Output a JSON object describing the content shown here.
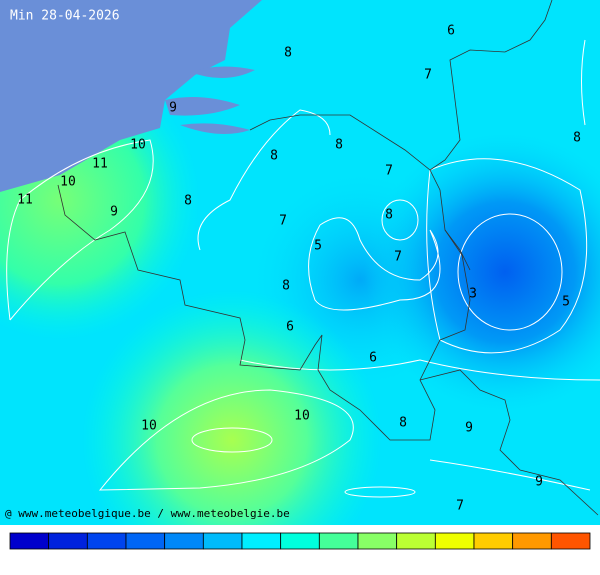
{
  "header": {
    "title": "Min 28-04-2026"
  },
  "labels": [
    8,
    6,
    7,
    8,
    9,
    10,
    11,
    10,
    11,
    9,
    8,
    8,
    8,
    7,
    8,
    7,
    5,
    7,
    8,
    3,
    5,
    6,
    6,
    10,
    10,
    8,
    9,
    9,
    7
  ],
  "footer": {
    "credit": "@ www.meteobelgique.be / www.meteobelgie.be"
  }
}
